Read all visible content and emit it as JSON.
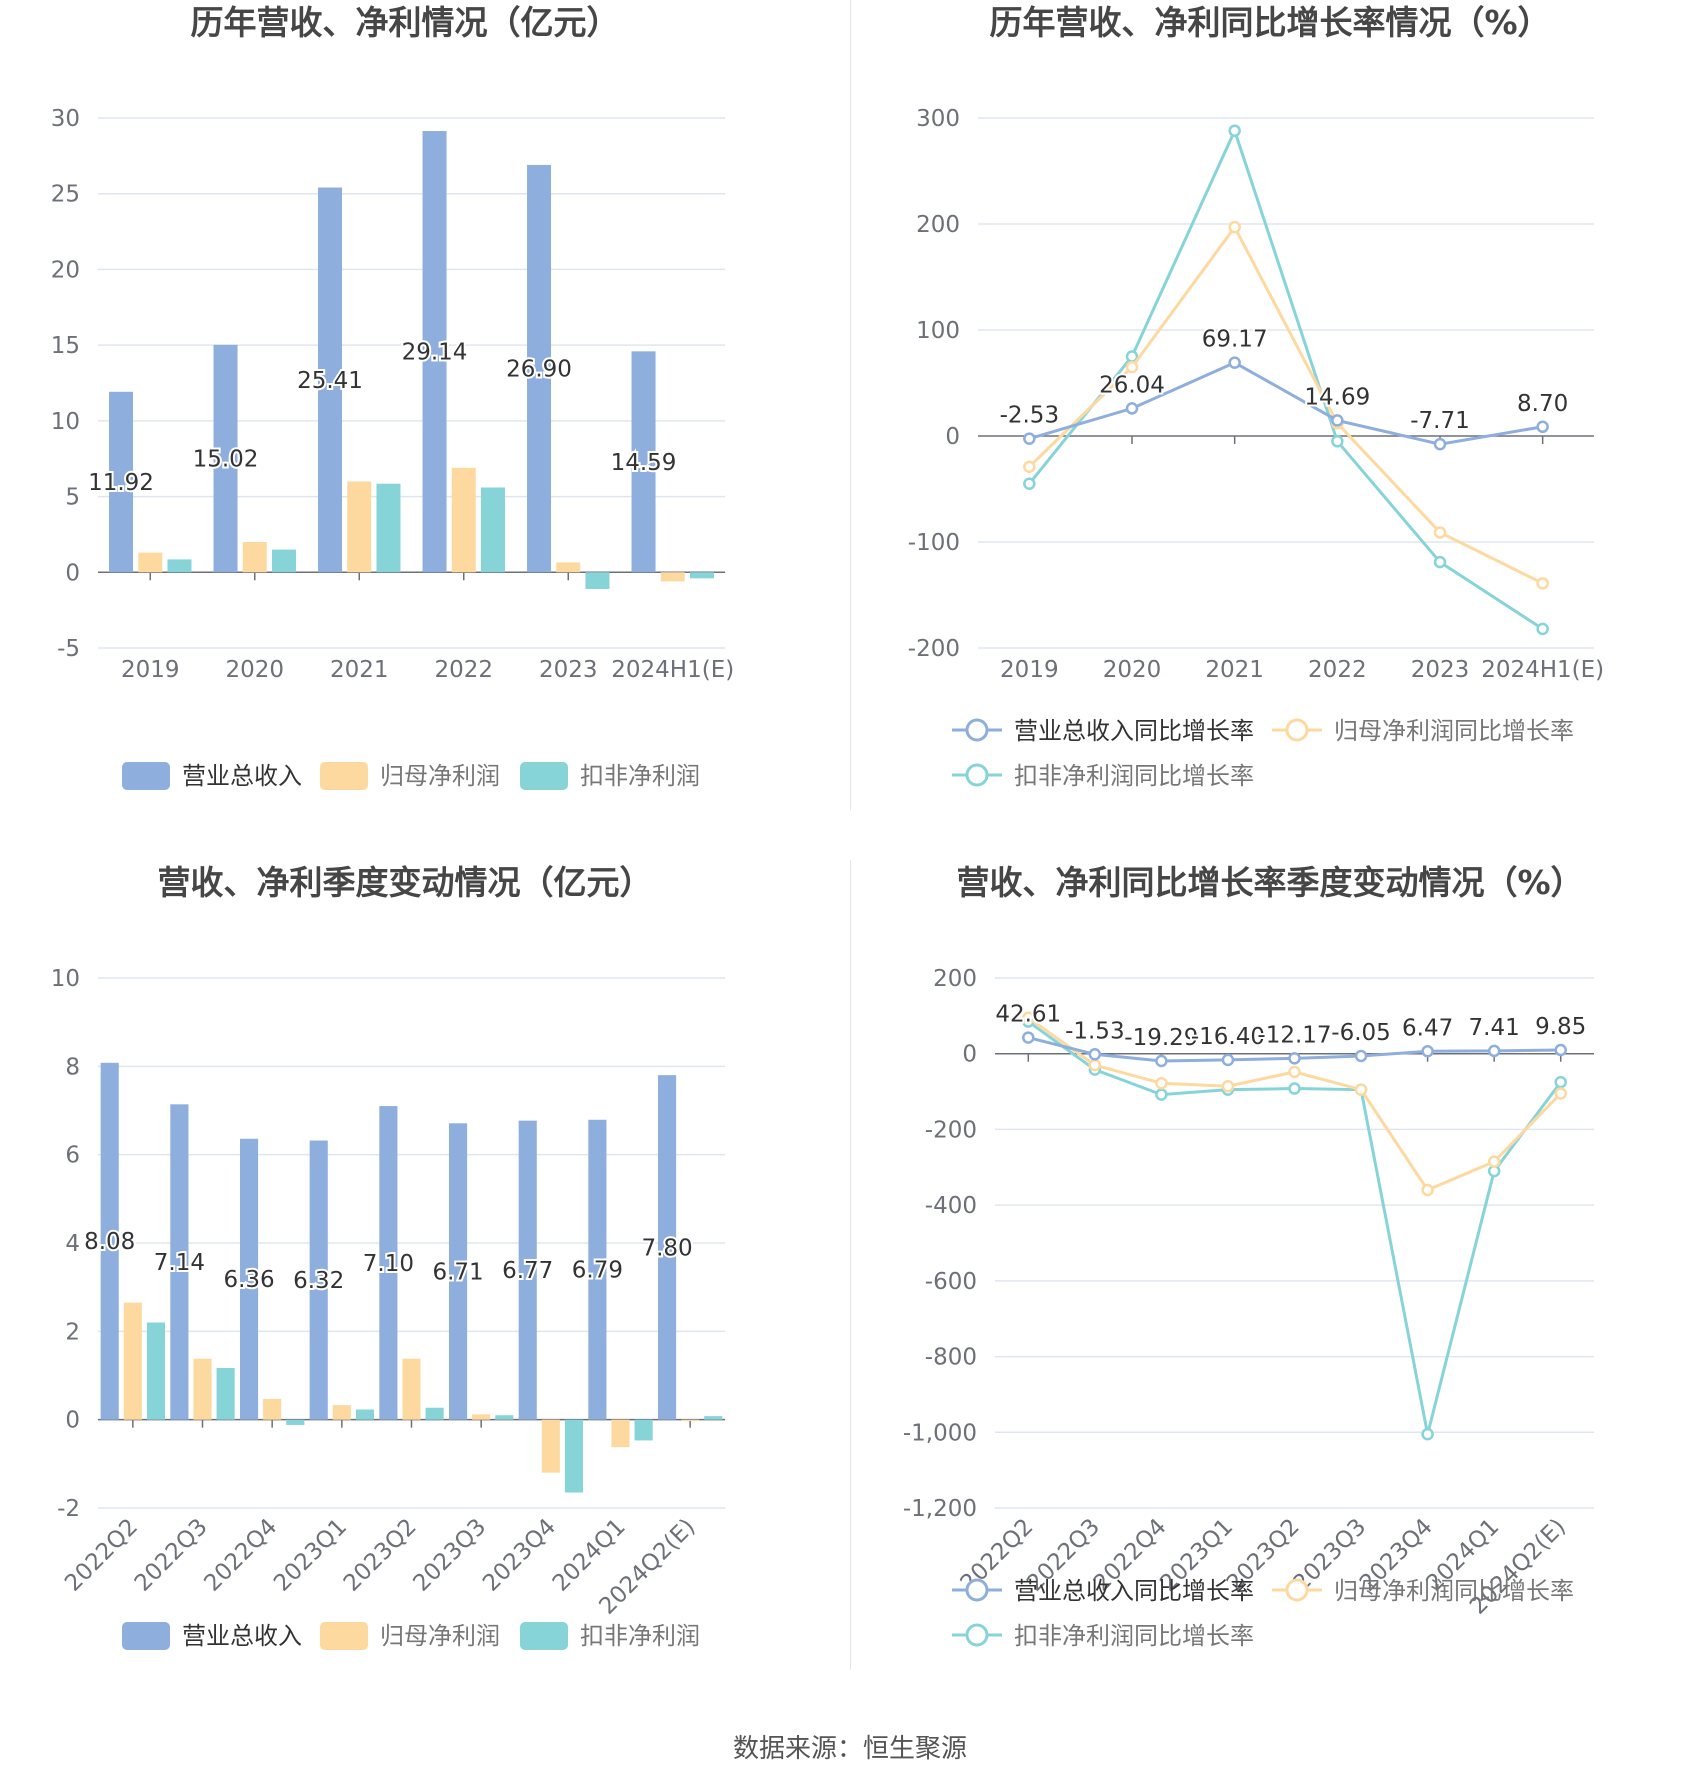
{
  "source": "数据来源：恒生聚源",
  "colors": {
    "revenue": "#8eaedd",
    "net_profit": "#fdd9a0",
    "deducted_profit": "#86d4d8",
    "rev_line": "#8eaedd",
    "np_line": "#fdd9a0",
    "dp_line": "#86d4d8",
    "grid": "#e0e6f1",
    "axis": "#6e7079"
  },
  "chart_data": [
    {
      "type": "bar",
      "title": "历年营收、净利情况（亿元）",
      "categories": [
        "2019",
        "2020",
        "2021",
        "2022",
        "2023",
        "2024H1(E)"
      ],
      "ylim": [
        -5,
        30
      ],
      "yticks": [
        -5,
        0,
        5,
        10,
        15,
        20,
        25,
        30
      ],
      "series": [
        {
          "name": "营业总收入",
          "values": [
            11.92,
            15.02,
            25.41,
            29.14,
            26.9,
            14.59
          ],
          "labels": [
            "11.92",
            "15.02",
            "25.41",
            "29.14",
            "26.90",
            "14.59"
          ]
        },
        {
          "name": "归母净利润",
          "values": [
            1.3,
            2.0,
            6.0,
            6.9,
            0.65,
            -0.6
          ]
        },
        {
          "name": "扣非净利润",
          "values": [
            0.85,
            1.5,
            5.85,
            5.6,
            -1.1,
            -0.4
          ]
        }
      ],
      "legend": "bottom",
      "grid": true
    },
    {
      "type": "line",
      "title": "历年营收、净利同比增长率情况（%）",
      "categories": [
        "2019",
        "2020",
        "2021",
        "2022",
        "2023",
        "2024H1(E)"
      ],
      "ylim": [
        -200,
        300
      ],
      "yticks": [
        -200,
        -100,
        0,
        100,
        200,
        300
      ],
      "series": [
        {
          "name": "营业总收入同比增长率",
          "values": [
            -2.53,
            26.04,
            69.17,
            14.69,
            -7.71,
            8.7
          ],
          "labels": [
            "-2.53",
            "26.04",
            "69.17",
            "14.69",
            "-7.71",
            "8.70"
          ]
        },
        {
          "name": "归母净利润同比增长率",
          "values": [
            -29,
            65,
            197,
            12,
            -91,
            -139
          ]
        },
        {
          "name": "扣非净利润同比增长率",
          "values": [
            -45,
            75,
            288,
            -5,
            -119,
            -182
          ]
        }
      ],
      "legend": "bottom",
      "grid": true
    },
    {
      "type": "bar",
      "title": "营收、净利季度变动情况（亿元）",
      "categories": [
        "2022Q2",
        "2022Q3",
        "2022Q4",
        "2023Q1",
        "2023Q2",
        "2023Q3",
        "2023Q4",
        "2024Q1",
        "2024Q2(E)"
      ],
      "ylim": [
        -2,
        10
      ],
      "yticks": [
        -2,
        0,
        2,
        4,
        6,
        8,
        10
      ],
      "series": [
        {
          "name": "营业总收入",
          "values": [
            8.08,
            7.14,
            6.36,
            6.32,
            7.1,
            6.71,
            6.77,
            6.79,
            7.8
          ],
          "labels": [
            "8.08",
            "7.14",
            "6.36",
            "6.32",
            "7.10",
            "6.71",
            "6.77",
            "6.79",
            "7.80"
          ]
        },
        {
          "name": "归母净利润",
          "values": [
            2.65,
            1.38,
            0.47,
            0.33,
            1.38,
            0.12,
            -1.2,
            -0.62,
            -0.03
          ]
        },
        {
          "name": "扣非净利润",
          "values": [
            2.2,
            1.17,
            -0.12,
            0.23,
            0.27,
            0.1,
            -1.65,
            -0.47,
            0.08
          ]
        }
      ],
      "legend": "bottom",
      "grid": true
    },
    {
      "type": "line",
      "title": "营收、净利同比增长率季度变动情况（%）",
      "categories": [
        "2022Q2",
        "2022Q3",
        "2022Q4",
        "2023Q1",
        "2023Q2",
        "2023Q3",
        "2023Q4",
        "2024Q1",
        "2024Q2(E)"
      ],
      "ylim": [
        -1200,
        200
      ],
      "yticks": [
        -1200,
        -1000,
        -800,
        -600,
        -400,
        -200,
        0,
        200
      ],
      "ytick_labels": [
        "-1,200",
        "-1,000",
        "-800",
        "-600",
        "-400",
        "-200",
        "0",
        "200"
      ],
      "series": [
        {
          "name": "营业总收入同比增长率",
          "values": [
            42.61,
            -1.53,
            -19.29,
            -16.4,
            -12.17,
            -6.05,
            6.47,
            7.41,
            9.85
          ],
          "labels": [
            "42.61",
            "-1.53",
            "-19.29",
            "-16.40",
            "-12.17",
            "-6.05",
            "6.47",
            "7.41",
            "9.85"
          ]
        },
        {
          "name": "归母净利润同比增长率",
          "values": [
            95,
            -30,
            -78,
            -86,
            -48,
            -95,
            -360,
            -285,
            -105
          ]
        },
        {
          "name": "扣非净利润同比增长率",
          "values": [
            85,
            -42,
            -108,
            -95,
            -92,
            -95,
            -1005,
            -310,
            -75
          ]
        }
      ],
      "legend": "bottom",
      "grid": true
    }
  ]
}
